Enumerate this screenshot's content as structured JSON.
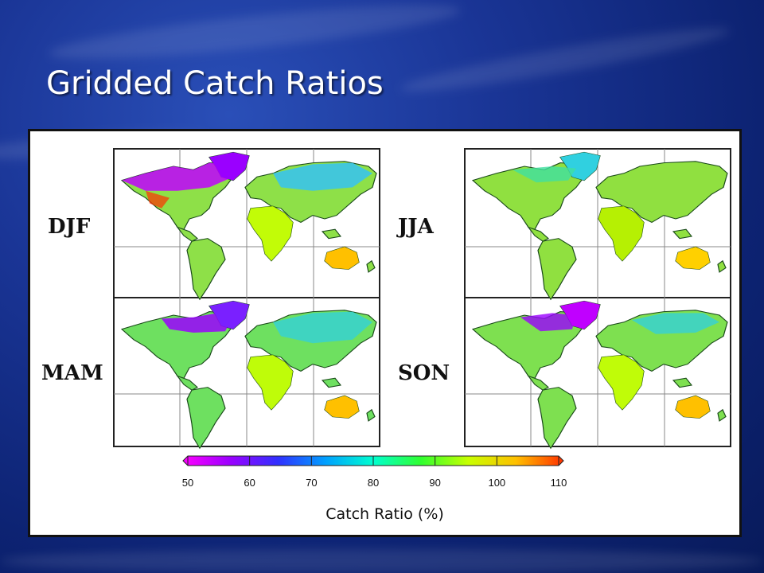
{
  "slide": {
    "title": "Gridded Catch Ratios"
  },
  "figure": {
    "panels": [
      {
        "season": "DJF"
      },
      {
        "season": "JJA"
      },
      {
        "season": "MAM"
      },
      {
        "season": "SON"
      }
    ],
    "colorbar": {
      "label": "Catch Ratio (%)",
      "ticks": [
        "50",
        "60",
        "70",
        "80",
        "90",
        "100",
        "110"
      ],
      "min": 50,
      "max": 110,
      "colors": [
        "#ff00ff",
        "#9a00ff",
        "#3030ff",
        "#00a0ff",
        "#00ffd0",
        "#30ff30",
        "#c8ff00",
        "#ffc000",
        "#ff3000"
      ]
    }
  }
}
